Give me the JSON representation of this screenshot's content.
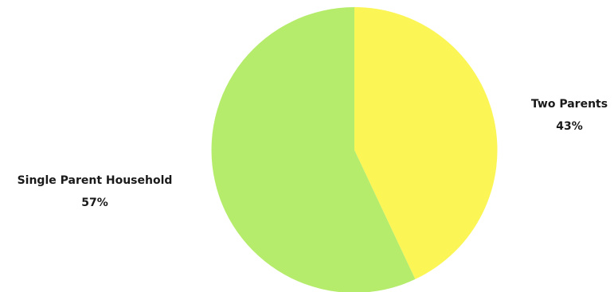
{
  "chart_data": {
    "type": "pie",
    "title": "",
    "slices": [
      {
        "label": "Two Parents",
        "value": 43,
        "percent_label": "43%",
        "color": "#fbf655"
      },
      {
        "label": "Single Parent Household",
        "value": 57,
        "percent_label": "57%",
        "color": "#b5ec6b"
      }
    ],
    "start_angle_deg": 0,
    "direction": "clockwise",
    "legend": "none"
  }
}
